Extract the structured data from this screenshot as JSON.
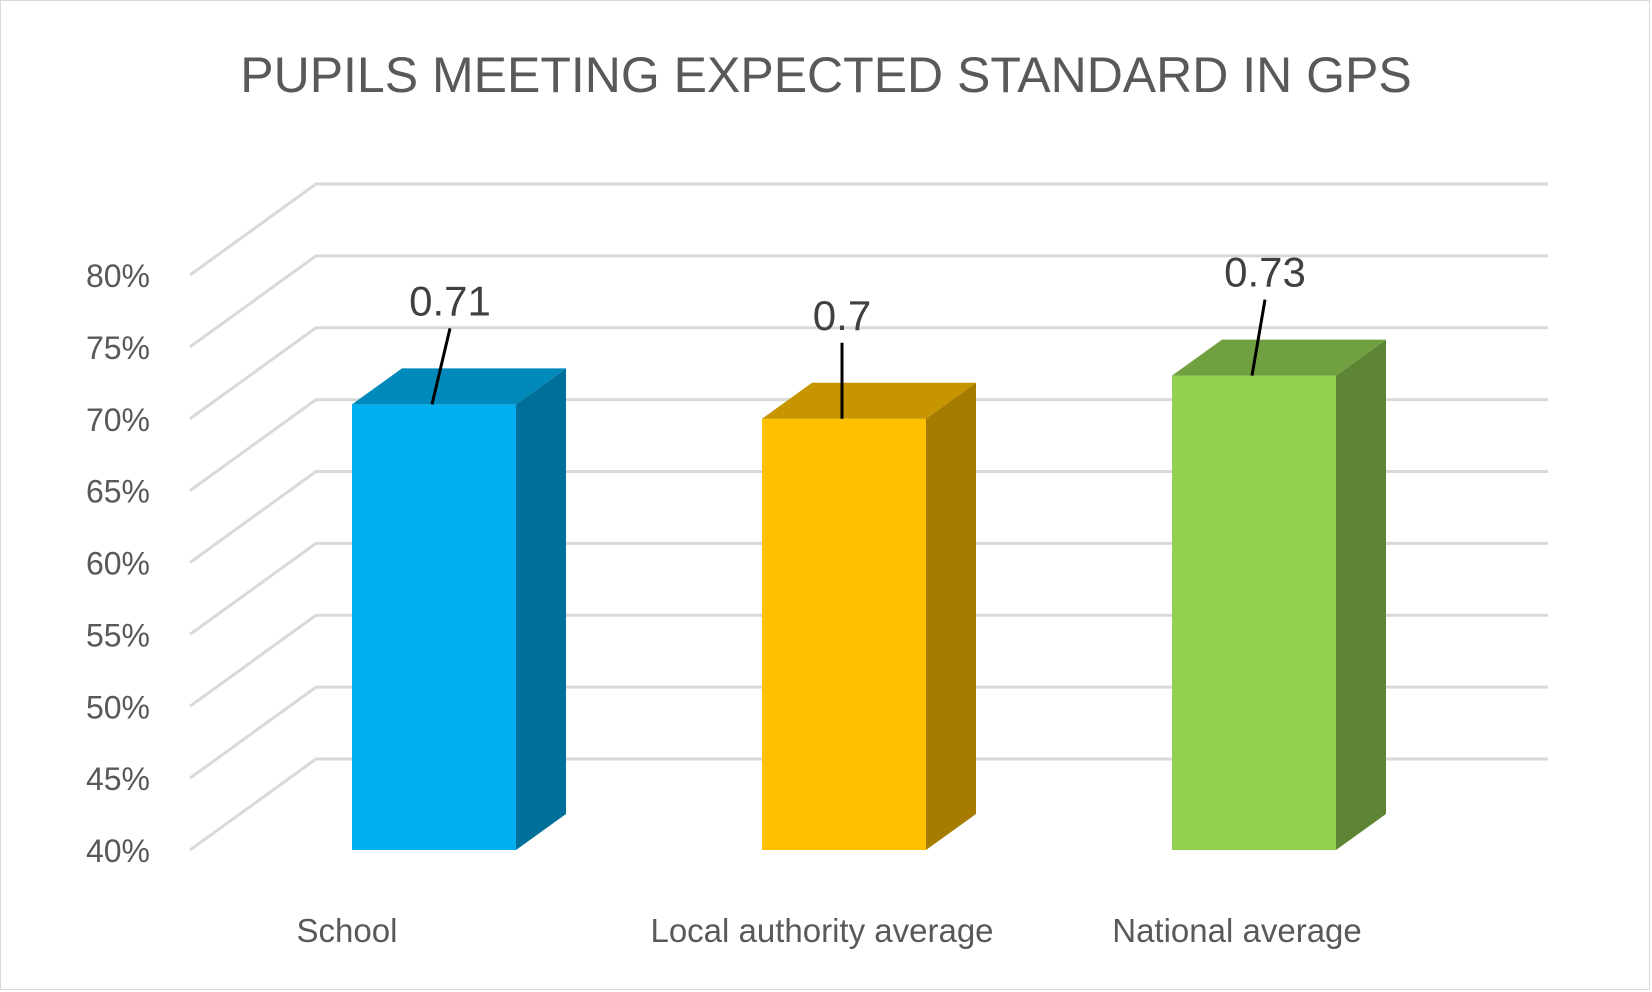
{
  "chart_data": {
    "type": "bar",
    "style": "3d-column",
    "title": "PUPILS MEETING EXPECTED STANDARD IN GPS",
    "categories": [
      "School",
      "Local authority average",
      "National average"
    ],
    "values": [
      0.71,
      0.7,
      0.73
    ],
    "data_labels": [
      "0.71",
      "0.7",
      "0.73"
    ],
    "colors": {
      "front": [
        "#00b0f0",
        "#ffc000",
        "#92d050"
      ],
      "side": [
        "#00709a",
        "#a57c00",
        "#5e8533"
      ],
      "top": [
        "#0089bb",
        "#c69500",
        "#71a040"
      ],
      "gridline": "#d9d9d9",
      "text": "#595959",
      "leader": "#000000"
    },
    "ylim": [
      0.4,
      0.8
    ],
    "ytick_values": [
      0.4,
      0.45,
      0.5,
      0.55,
      0.6,
      0.65,
      0.7,
      0.75,
      0.8
    ],
    "ytick_labels": [
      "40%",
      "45%",
      "50%",
      "55%",
      "60%",
      "65%",
      "70%",
      "75%",
      "80%"
    ],
    "xlabel": "",
    "ylabel": "",
    "grid": true,
    "legend": "none"
  }
}
